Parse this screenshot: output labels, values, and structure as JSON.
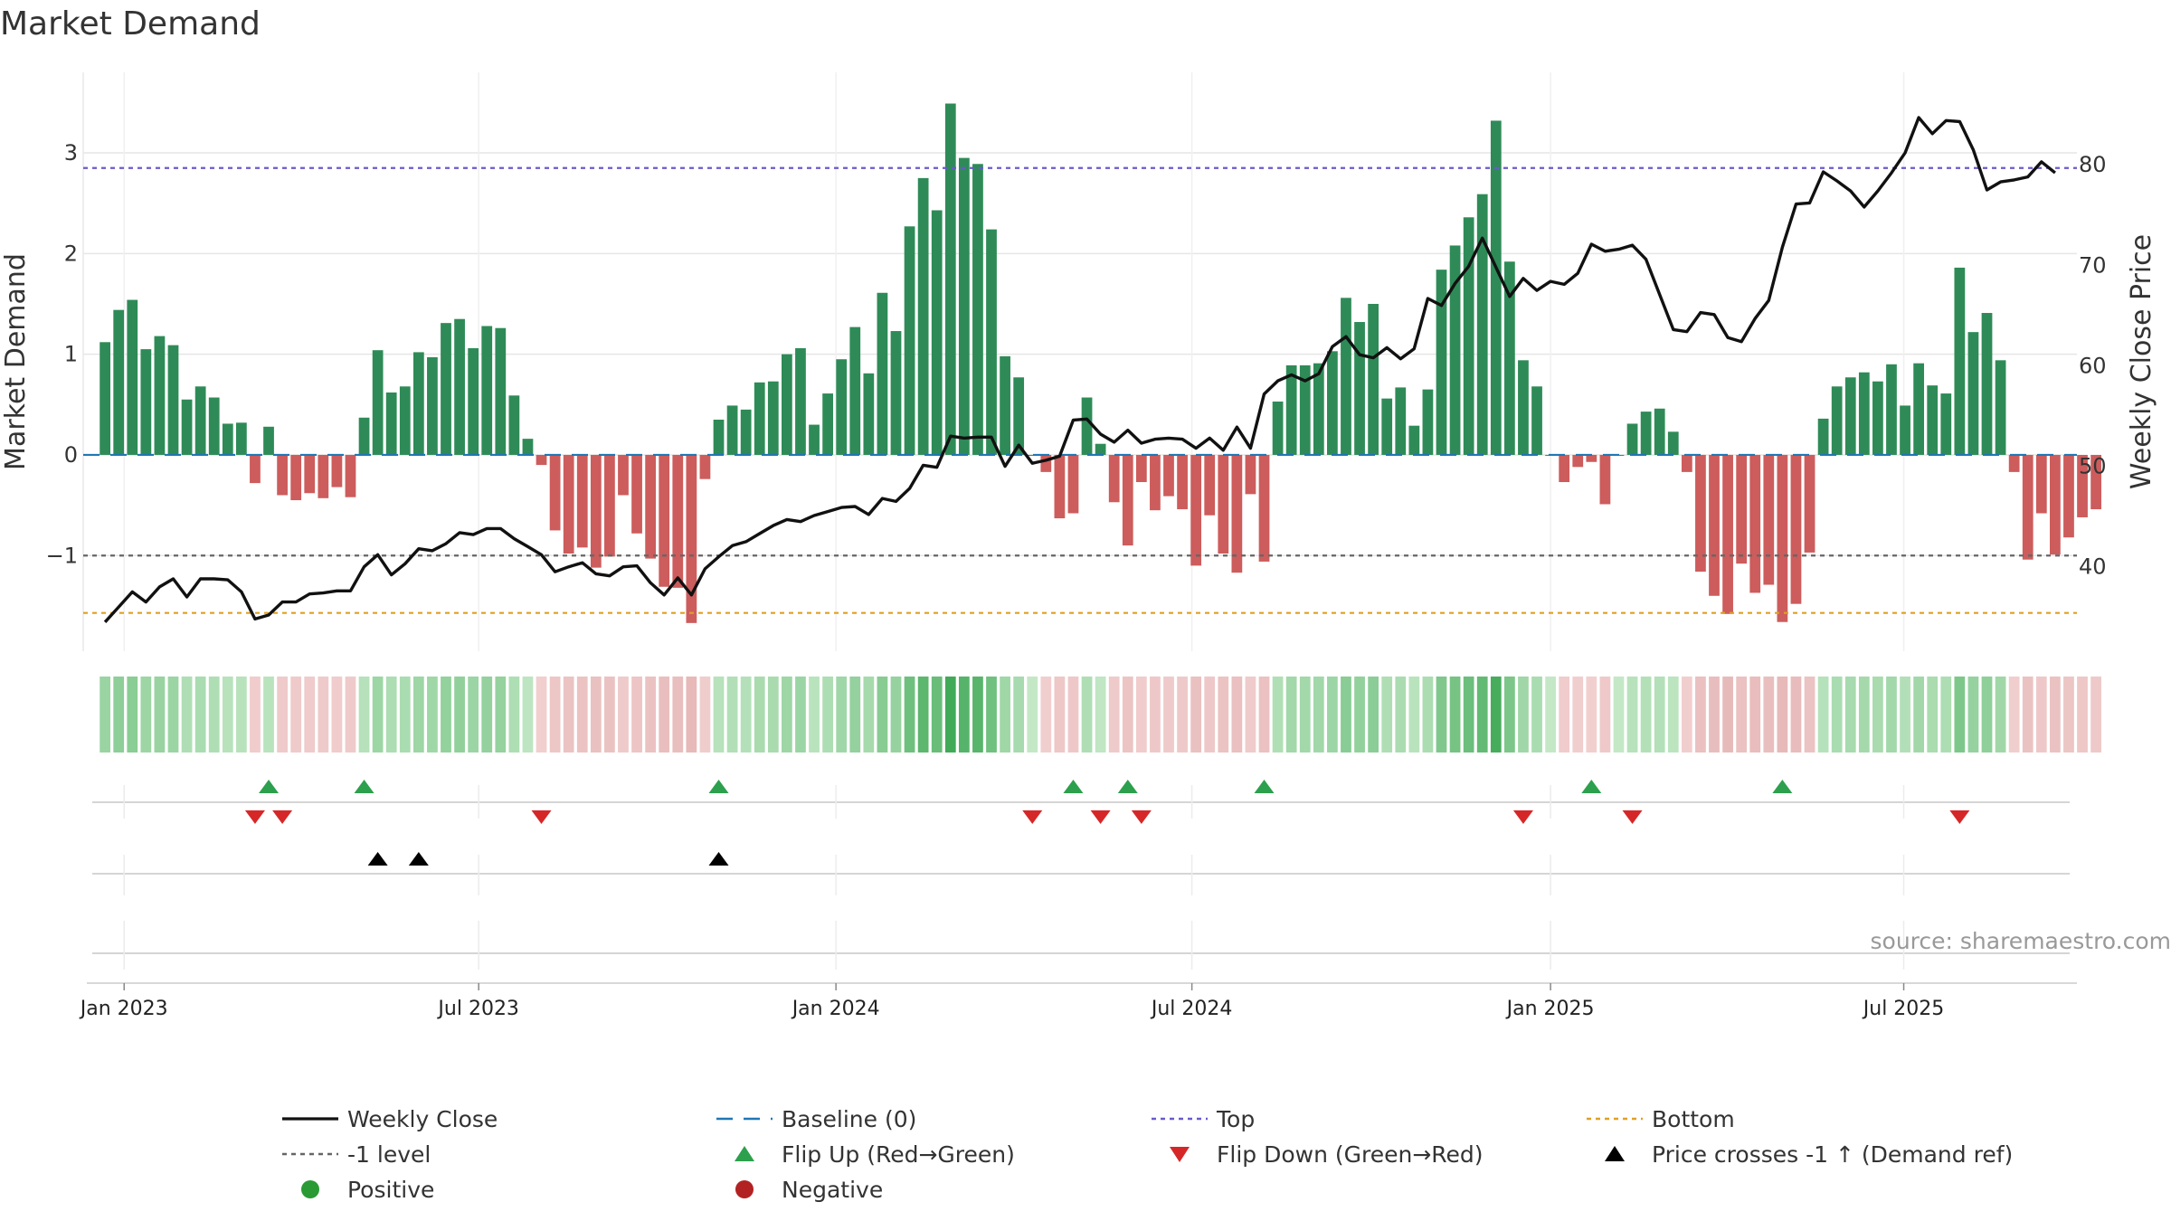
{
  "chart_data": {
    "type": "bar",
    "title": "Market Demand",
    "ylabel": "Market Demand",
    "y2label": "Weekly Close Price",
    "ylim": [
      -1.95,
      3.8
    ],
    "y2lim": [
      31.6,
      89.2
    ],
    "yticks": [
      -1,
      0,
      1,
      2,
      3
    ],
    "ytick_labels": [
      "−1",
      "0",
      "1",
      "2",
      "3"
    ],
    "y2ticks": [
      40,
      50,
      60,
      70,
      80
    ],
    "y2tick_labels": [
      "40",
      "50",
      "60",
      "70",
      "80"
    ],
    "x_index_range": [
      -1.6,
      144.6
    ],
    "xticks": [
      {
        "index": 1.4,
        "label": "Jan 2023"
      },
      {
        "index": 27.4,
        "label": "Jul 2023"
      },
      {
        "index": 53.6,
        "label": "Jan 2024"
      },
      {
        "index": 79.7,
        "label": "Jul 2024"
      },
      {
        "index": 106.0,
        "label": "Jan 2025"
      },
      {
        "index": 131.9,
        "label": "Jul 2025"
      }
    ],
    "series": [
      {
        "name": "Market Demand",
        "type": "bar",
        "values": [
          1.12,
          1.44,
          1.54,
          1.05,
          1.18,
          1.09,
          0.55,
          0.68,
          0.57,
          0.31,
          0.32,
          -0.28,
          0.28,
          -0.4,
          -0.45,
          -0.38,
          -0.43,
          -0.32,
          -0.42,
          0.37,
          1.04,
          0.62,
          0.68,
          1.02,
          0.97,
          1.31,
          1.35,
          1.06,
          1.28,
          1.26,
          0.59,
          0.16,
          -0.1,
          -0.75,
          -0.98,
          -0.92,
          -1.12,
          -1.01,
          -0.4,
          -0.78,
          -1.03,
          -1.31,
          -1.32,
          -1.67,
          -0.24,
          0.35,
          0.49,
          0.45,
          0.72,
          0.73,
          1.0,
          1.06,
          0.3,
          0.61,
          0.95,
          1.27,
          0.81,
          1.61,
          1.23,
          2.27,
          2.75,
          2.43,
          3.49,
          2.95,
          2.89,
          2.24,
          0.98,
          0.77,
          0.0,
          -0.17,
          -0.63,
          -0.58,
          0.57,
          0.11,
          -0.47,
          -0.9,
          -0.27,
          -0.55,
          -0.41,
          -0.54,
          -1.1,
          -0.6,
          -0.98,
          -1.17,
          -0.39,
          -1.06,
          0.53,
          0.89,
          0.89,
          0.91,
          1.03,
          1.56,
          1.32,
          1.5,
          0.56,
          0.67,
          0.29,
          0.65,
          1.84,
          2.08,
          2.36,
          2.59,
          3.32,
          1.92,
          0.94,
          0.68,
          0.0,
          -0.27,
          -0.12,
          -0.07,
          -0.49,
          0.0,
          0.31,
          0.43,
          0.46,
          0.23,
          -0.17,
          -1.16,
          -1.4,
          -1.58,
          -1.08,
          -1.37,
          -1.29,
          -1.66,
          -1.48,
          -0.97,
          0.36,
          0.68,
          0.77,
          0.82,
          0.73,
          0.9,
          0.49,
          0.91,
          0.69,
          0.61,
          1.86,
          1.22,
          1.41,
          0.94,
          -0.17,
          -1.04,
          -0.58,
          -0.99,
          -0.82,
          -0.62,
          -0.54
        ]
      },
      {
        "name": "Weekly Close",
        "type": "line",
        "values": [
          34.5,
          36.0,
          37.5,
          36.5,
          38.0,
          38.8,
          37.0,
          38.8,
          38.8,
          38.7,
          37.5,
          34.8,
          35.2,
          36.5,
          36.5,
          37.3,
          37.4,
          37.6,
          37.6,
          40.0,
          41.2,
          39.2,
          40.3,
          41.8,
          41.6,
          42.3,
          43.4,
          43.2,
          43.8,
          43.8,
          42.8,
          42.0,
          41.2,
          39.5,
          40.0,
          40.4,
          39.3,
          39.1,
          40.0,
          40.1,
          38.4,
          37.2,
          38.9,
          37.2,
          39.8,
          41.0,
          42.1,
          42.5,
          43.3,
          44.1,
          44.7,
          44.5,
          45.1,
          45.5,
          45.9,
          46.0,
          45.2,
          46.8,
          46.5,
          47.8,
          50.1,
          49.9,
          53.0,
          52.8,
          52.9,
          52.9,
          50.0,
          52.1,
          50.3,
          50.6,
          51.0,
          54.6,
          54.7,
          53.2,
          52.4,
          53.6,
          52.3,
          52.7,
          52.8,
          52.7,
          51.8,
          52.8,
          51.6,
          53.9,
          51.8,
          57.2,
          58.5,
          59.1,
          58.5,
          59.2,
          61.9,
          62.9,
          61.1,
          60.8,
          61.8,
          60.7,
          61.7,
          66.7,
          66.0,
          68.2,
          69.9,
          72.7,
          69.8,
          66.9,
          68.7,
          67.5,
          68.4,
          68.1,
          69.2,
          72.1,
          71.4,
          71.6,
          72.0,
          70.6,
          67.1,
          63.6,
          63.4,
          65.3,
          65.1,
          62.8,
          62.4,
          64.7,
          66.5,
          71.8,
          76.1,
          76.2,
          79.3,
          78.4,
          77.4,
          75.8,
          77.4,
          79.2,
          81.2,
          84.7,
          83.1,
          84.4,
          84.3,
          81.5,
          77.5,
          78.3,
          78.5,
          78.8,
          80.3,
          79.2
        ]
      },
      {
        "name": "Baseline (0)",
        "type": "hline",
        "value": 0
      },
      {
        "name": "Top",
        "type": "hline",
        "value": 2.85
      },
      {
        "name": "Bottom",
        "type": "hline",
        "value": -1.57
      },
      {
        "name": "-1 level",
        "type": "hline",
        "value": -1
      },
      {
        "name": "Flip Up (Red→Green)",
        "type": "marker",
        "indices": [
          12,
          19,
          45,
          71,
          75,
          85,
          109,
          123
        ]
      },
      {
        "name": "Flip Down (Green→Red)",
        "type": "marker",
        "indices": [
          11,
          13,
          32,
          68,
          73,
          76,
          104,
          112,
          136
        ]
      },
      {
        "name": "Price crosses -1 ↑ (Demand ref)",
        "type": "marker",
        "indices": [
          20,
          23,
          45
        ]
      }
    ]
  },
  "legend": [
    {
      "key": "weekly-close",
      "label": "Weekly Close",
      "style": "line-solid",
      "color": "#111111"
    },
    {
      "key": "baseline",
      "label": "Baseline (0)",
      "style": "line-dash",
      "color": "#1f77b4"
    },
    {
      "key": "top",
      "label": "Top",
      "style": "line-dot",
      "color": "#6a5acd"
    },
    {
      "key": "bottom",
      "label": "Bottom",
      "style": "line-dot",
      "color": "#e0a020"
    },
    {
      "key": "minus-one",
      "label": "-1 level",
      "style": "line-dot",
      "color": "#666666"
    },
    {
      "key": "flip-up",
      "label": "Flip Up (Red→Green)",
      "style": "tri-up",
      "color": "#2ca04c"
    },
    {
      "key": "flip-down",
      "label": "Flip Down (Green→Red)",
      "style": "tri-down",
      "color": "#d62728"
    },
    {
      "key": "price-cross",
      "label": "Price crosses -1 ↑ (Demand ref)",
      "style": "tri-up",
      "color": "#000000"
    },
    {
      "key": "positive",
      "label": "Positive",
      "style": "dot",
      "color": "#2a9a35"
    },
    {
      "key": "negative",
      "label": "Negative",
      "style": "dot",
      "color": "#b22222"
    }
  ],
  "source": "source: sharemaestro.com",
  "colors": {
    "positive_bar": "#2e8b57",
    "negative_bar": "#cd5c5c",
    "grid": "#e6e6e6"
  }
}
